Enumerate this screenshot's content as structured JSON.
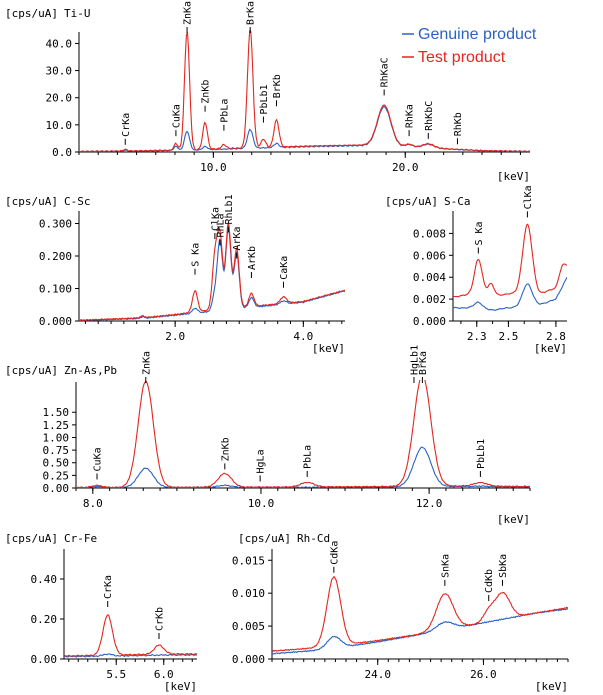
{
  "legend": {
    "genuine": {
      "label": "Genuine product",
      "color": "#2a62c4"
    },
    "test": {
      "label": "Test product",
      "color": "#e3261f"
    }
  },
  "chart_data": [
    {
      "id": "ti-u",
      "type": "line",
      "ylabel": "[cps/uA]",
      "title": "Ti-U",
      "xunit": "[keV]",
      "xlim": [
        3.0,
        26.5
      ],
      "ylim": [
        0,
        42
      ],
      "yticks": [
        "0.0",
        "10.0",
        "20.0",
        "30.0",
        "40.0"
      ],
      "ytick_values": [
        0,
        10,
        20,
        30,
        40
      ],
      "xticks": [
        "10.0",
        "20.0"
      ],
      "xtick_values": [
        10,
        20
      ],
      "xminor_step": 1.0,
      "peaks": [
        {
          "label": "CrKa",
          "x": 5.41,
          "y": 0.8
        },
        {
          "label": "CuKa",
          "x": 8.05,
          "y": 4.0
        },
        {
          "label": "ZnKa",
          "x": 8.63,
          "y": 42.0
        },
        {
          "label": "ZnKb",
          "x": 9.57,
          "y": 13.0
        },
        {
          "label": "PbLa",
          "x": 10.55,
          "y": 6.0
        },
        {
          "label": "BrKa",
          "x": 11.92,
          "y": 42.0
        },
        {
          "label": "PbLb1",
          "x": 12.61,
          "y": 9.0
        },
        {
          "label": "BrKb",
          "x": 13.29,
          "y": 15.0
        },
        {
          "label": "RhKaC",
          "x": 18.9,
          "y": 19.0
        },
        {
          "label": "RhKa",
          "x": 20.2,
          "y": 4.0
        },
        {
          "label": "RhKbC",
          "x": 21.2,
          "y": 3.0
        },
        {
          "label": "RhKb",
          "x": 22.72,
          "y": 1.0
        }
      ],
      "series": [
        {
          "name": "Test product",
          "color": "#e3261f",
          "baseline": [
            [
              3.0,
              0.2
            ],
            [
              6.0,
              0.4
            ],
            [
              9.0,
              0.8
            ],
            [
              12.0,
              1.6
            ],
            [
              15.0,
              2.2
            ],
            [
              18.0,
              2.6
            ],
            [
              21.0,
              1.6
            ],
            [
              24.0,
              0.5
            ],
            [
              26.5,
              0.2
            ]
          ],
          "peaks": [
            [
              5.41,
              0.6,
              0.1
            ],
            [
              8.05,
              2.5,
              0.1
            ],
            [
              8.63,
              44.0,
              0.13
            ],
            [
              9.57,
              10.0,
              0.12
            ],
            [
              10.55,
              1.5,
              0.12
            ],
            [
              11.92,
              44.0,
              0.14
            ],
            [
              12.61,
              3.0,
              0.12
            ],
            [
              13.29,
              10.0,
              0.13
            ],
            [
              18.9,
              15.0,
              0.35
            ],
            [
              20.2,
              1.0,
              0.2
            ],
            [
              21.2,
              1.5,
              0.3
            ]
          ]
        },
        {
          "name": "Genuine product",
          "color": "#2a62c4",
          "baseline": [
            [
              3.0,
              0.2
            ],
            [
              6.0,
              0.4
            ],
            [
              9.0,
              0.7
            ],
            [
              12.0,
              1.4
            ],
            [
              15.0,
              2.0
            ],
            [
              18.0,
              2.4
            ],
            [
              21.0,
              1.5
            ],
            [
              24.0,
              0.5
            ],
            [
              26.5,
              0.2
            ]
          ],
          "peaks": [
            [
              5.41,
              0.3,
              0.1
            ],
            [
              8.05,
              1.5,
              0.1
            ],
            [
              8.63,
              7.0,
              0.13
            ],
            [
              9.57,
              1.2,
              0.12
            ],
            [
              11.92,
              7.0,
              0.14
            ],
            [
              13.29,
              1.5,
              0.13
            ],
            [
              18.9,
              14.5,
              0.35
            ],
            [
              20.2,
              1.0,
              0.2
            ],
            [
              21.2,
              1.4,
              0.3
            ]
          ]
        }
      ]
    },
    {
      "id": "c-sc",
      "type": "line",
      "ylabel": "[cps/uA]",
      "title": "C-Sc",
      "xunit": "[keV]",
      "xlim": [
        0.5,
        4.65
      ],
      "ylim": [
        0,
        0.32
      ],
      "yticks": [
        "0.000",
        "0.100",
        "0.200",
        "0.300"
      ],
      "ytick_values": [
        0,
        0.1,
        0.2,
        0.3
      ],
      "xticks": [
        "2.0",
        "4.0"
      ],
      "xtick_values": [
        2.0,
        4.0
      ],
      "xminor_step": 0.2,
      "peaks": [
        {
          "label": "S Ka",
          "x": 2.31,
          "y": 0.13
        },
        {
          "label": "RhLa",
          "x": 2.7,
          "y": 0.22
        },
        {
          "label": "RhLb1",
          "x": 2.83,
          "y": 0.26
        },
        {
          "label": "ArKa",
          "x": 2.96,
          "y": 0.18
        },
        {
          "label": "ClKa",
          "x": 2.62,
          "y": 0.24
        },
        {
          "label": "ArKb",
          "x": 3.19,
          "y": 0.12
        },
        {
          "label": "CaKa",
          "x": 3.69,
          "y": 0.09
        }
      ],
      "series": [
        {
          "name": "Test product",
          "color": "#e3261f",
          "baseline": [
            [
              0.5,
              0.002
            ],
            [
              1.5,
              0.01
            ],
            [
              2.0,
              0.02
            ],
            [
              2.6,
              0.035
            ],
            [
              3.2,
              0.045
            ],
            [
              4.0,
              0.06
            ],
            [
              4.65,
              0.095
            ]
          ],
          "peaks": [
            [
              1.49,
              0.006,
              0.03
            ],
            [
              2.31,
              0.065,
              0.04
            ],
            [
              2.62,
              0.16,
              0.04
            ],
            [
              2.7,
              0.22,
              0.04
            ],
            [
              2.83,
              0.26,
              0.04
            ],
            [
              2.96,
              0.18,
              0.04
            ],
            [
              3.19,
              0.04,
              0.04
            ],
            [
              3.69,
              0.02,
              0.05
            ]
          ]
        },
        {
          "name": "Genuine product",
          "color": "#2a62c4",
          "baseline": [
            [
              0.5,
              0.002
            ],
            [
              1.5,
              0.008
            ],
            [
              2.0,
              0.018
            ],
            [
              2.6,
              0.03
            ],
            [
              3.2,
              0.042
            ],
            [
              4.0,
              0.058
            ],
            [
              4.65,
              0.093
            ]
          ],
          "peaks": [
            [
              1.49,
              0.005,
              0.03
            ],
            [
              2.31,
              0.015,
              0.04
            ],
            [
              2.62,
              0.05,
              0.04
            ],
            [
              2.7,
              0.21,
              0.04
            ],
            [
              2.83,
              0.25,
              0.04
            ],
            [
              2.96,
              0.17,
              0.04
            ],
            [
              3.19,
              0.03,
              0.04
            ],
            [
              3.69,
              0.01,
              0.05
            ]
          ]
        }
      ]
    },
    {
      "id": "s-ca",
      "type": "line",
      "ylabel": "[cps/uA]",
      "title": "S-Ca",
      "xunit": "[keV]",
      "xlim": [
        2.15,
        2.87
      ],
      "ylim": [
        0,
        0.0095
      ],
      "yticks": [
        "0.000",
        "0.002",
        "0.004",
        "0.006",
        "0.008"
      ],
      "ytick_values": [
        0,
        0.002,
        0.004,
        0.006,
        0.008
      ],
      "xticks": [
        "2.3",
        "2.5",
        "2.8"
      ],
      "xtick_values": [
        2.3,
        2.5,
        2.8
      ],
      "xminor_step": 0.1,
      "peaks": [
        {
          "label": "S Ka",
          "x": 2.31,
          "y": 0.0058
        },
        {
          "label": "ClKa",
          "x": 2.62,
          "y": 0.0091
        }
      ],
      "series": [
        {
          "name": "Test product",
          "color": "#e3261f",
          "baseline": [
            [
              2.15,
              0.0022
            ],
            [
              2.25,
              0.0024
            ],
            [
              2.4,
              0.0022
            ],
            [
              2.5,
              0.0025
            ],
            [
              2.7,
              0.0025
            ],
            [
              2.8,
              0.003
            ],
            [
              2.87,
              0.0048
            ]
          ],
          "peaks": [
            [
              2.31,
              0.0033,
              0.025
            ],
            [
              2.39,
              0.0012,
              0.02
            ],
            [
              2.62,
              0.0063,
              0.03
            ],
            [
              2.84,
              0.001,
              0.02
            ]
          ]
        },
        {
          "name": "Genuine product",
          "color": "#2a62c4",
          "baseline": [
            [
              2.15,
              0.0012
            ],
            [
              2.25,
              0.0012
            ],
            [
              2.4,
              0.001
            ],
            [
              2.5,
              0.0012
            ],
            [
              2.7,
              0.0015
            ],
            [
              2.8,
              0.002
            ],
            [
              2.87,
              0.004
            ]
          ],
          "peaks": [
            [
              2.31,
              0.0006,
              0.025
            ],
            [
              2.62,
              0.002,
              0.03
            ]
          ]
        }
      ]
    },
    {
      "id": "zn-as-pb",
      "type": "line",
      "ylabel": "[cps/uA]",
      "title": "Zn-As,Pb",
      "xunit": "[keV]",
      "xlim": [
        7.8,
        13.2
      ],
      "ylim": [
        0,
        1.98
      ],
      "yticks": [
        "0.00",
        "0.25",
        "0.50",
        "0.75",
        "1.00",
        "1.25",
        "1.50"
      ],
      "ytick_values": [
        0,
        0.25,
        0.5,
        0.75,
        1.0,
        1.25,
        1.5
      ],
      "xticks": [
        "8.0",
        "10.0",
        "12.0"
      ],
      "xtick_values": [
        8.0,
        10.0,
        12.0
      ],
      "xminor_step": 0.2,
      "peaks": [
        {
          "label": "CuKa",
          "x": 8.05,
          "y": 0.07
        },
        {
          "label": "ZnKa",
          "x": 8.63,
          "y": 1.98
        },
        {
          "label": "ZnKb",
          "x": 9.57,
          "y": 0.27
        },
        {
          "label": "HgLa",
          "x": 9.99,
          "y": 0.03
        },
        {
          "label": "PbLa",
          "x": 10.55,
          "y": 0.12
        },
        {
          "label": "HgLb1",
          "x": 11.82,
          "y": 1.98
        },
        {
          "label": "BrKa",
          "x": 11.92,
          "y": 1.98
        },
        {
          "label": "PbLb1",
          "x": 12.61,
          "y": 0.12
        }
      ],
      "series": [
        {
          "name": "Test product",
          "color": "#e3261f",
          "baseline": [
            [
              7.8,
              0.01
            ],
            [
              9.0,
              0.015
            ],
            [
              10.5,
              0.02
            ],
            [
              11.5,
              0.03
            ],
            [
              12.4,
              0.04
            ],
            [
              13.2,
              0.03
            ]
          ],
          "peaks": [
            [
              8.05,
              0.04,
              0.06
            ],
            [
              8.63,
              2.1,
              0.09
            ],
            [
              9.57,
              0.27,
              0.08
            ],
            [
              10.55,
              0.09,
              0.08
            ],
            [
              11.92,
              2.2,
              0.1
            ],
            [
              12.61,
              0.07,
              0.08
            ]
          ]
        },
        {
          "name": "Genuine product",
          "color": "#2a62c4",
          "baseline": [
            [
              7.8,
              0.008
            ],
            [
              9.0,
              0.012
            ],
            [
              10.5,
              0.015
            ],
            [
              11.5,
              0.02
            ],
            [
              12.4,
              0.03
            ],
            [
              13.2,
              0.02
            ]
          ],
          "peaks": [
            [
              8.05,
              0.02,
              0.06
            ],
            [
              8.63,
              0.38,
              0.09
            ],
            [
              9.57,
              0.04,
              0.08
            ],
            [
              11.92,
              0.78,
              0.1
            ],
            [
              12.61,
              0.01,
              0.08
            ]
          ]
        }
      ]
    },
    {
      "id": "cr-fe",
      "type": "line",
      "ylabel": "[cps/uA]",
      "title": "Cr-Fe",
      "xunit": "[keV]",
      "xlim": [
        4.95,
        6.35
      ],
      "ylim": [
        0,
        0.52
      ],
      "yticks": [
        "0.00",
        "0.20",
        "0.40"
      ],
      "ytick_values": [
        0,
        0.2,
        0.4
      ],
      "xticks": [
        "5.5",
        "6.0"
      ],
      "xtick_values": [
        5.5,
        6.0
      ],
      "xminor_step": 0.1,
      "peaks": [
        {
          "label": "CrKa",
          "x": 5.41,
          "y": 0.24
        },
        {
          "label": "CrKb",
          "x": 5.95,
          "y": 0.08
        }
      ],
      "series": [
        {
          "name": "Test product",
          "color": "#e3261f",
          "baseline": [
            [
              4.95,
              0.015
            ],
            [
              5.5,
              0.02
            ],
            [
              6.0,
              0.025
            ],
            [
              6.35,
              0.025
            ]
          ],
          "peaks": [
            [
              5.41,
              0.2,
              0.05
            ],
            [
              5.95,
              0.045,
              0.05
            ]
          ]
        },
        {
          "name": "Genuine product",
          "color": "#2a62c4",
          "baseline": [
            [
              4.95,
              0.012
            ],
            [
              5.5,
              0.015
            ],
            [
              6.0,
              0.02
            ],
            [
              6.35,
              0.02
            ]
          ],
          "peaks": [
            [
              5.41,
              0.01,
              0.05
            ]
          ]
        }
      ]
    },
    {
      "id": "rh-cd",
      "type": "line",
      "ylabel": "[cps/uA]",
      "title": "Rh-Cd",
      "xunit": "[keV]",
      "xlim": [
        22.0,
        27.6
      ],
      "ylim": [
        0,
        0.0158
      ],
      "yticks": [
        "0.000",
        "0.005",
        "0.010",
        "0.015"
      ],
      "ytick_values": [
        0,
        0.005,
        0.01,
        0.015
      ],
      "xticks": [
        "24.0",
        "26.0"
      ],
      "xtick_values": [
        24.0,
        26.0
      ],
      "xminor_step": 0.2,
      "peaks": [
        {
          "label": "CdKa",
          "x": 23.17,
          "y": 0.0125
        },
        {
          "label": "SnKa",
          "x": 25.27,
          "y": 0.0105
        },
        {
          "label": "CdKb",
          "x": 26.1,
          "y": 0.0082
        },
        {
          "label": "SbKa",
          "x": 26.36,
          "y": 0.0105
        }
      ],
      "series": [
        {
          "name": "Test product",
          "color": "#e3261f",
          "baseline": [
            [
              22.0,
              0.0012
            ],
            [
              23.0,
              0.0018
            ],
            [
              24.0,
              0.0028
            ],
            [
              25.0,
              0.004
            ],
            [
              26.0,
              0.0055
            ],
            [
              27.0,
              0.007
            ],
            [
              27.6,
              0.0078
            ]
          ],
          "peaks": [
            [
              23.17,
              0.0105,
              0.13
            ],
            [
              25.27,
              0.0055,
              0.16
            ],
            [
              26.1,
              0.0015,
              0.1
            ],
            [
              26.36,
              0.004,
              0.14
            ]
          ]
        },
        {
          "name": "Genuine product",
          "color": "#2a62c4",
          "baseline": [
            [
              22.0,
              0.0008
            ],
            [
              23.0,
              0.0014
            ],
            [
              24.0,
              0.0026
            ],
            [
              25.0,
              0.004
            ],
            [
              26.0,
              0.0055
            ],
            [
              27.0,
              0.007
            ],
            [
              27.6,
              0.0076
            ]
          ],
          "peaks": [
            [
              23.17,
              0.0018,
              0.13
            ],
            [
              25.27,
              0.0012,
              0.16
            ]
          ]
        }
      ]
    }
  ]
}
